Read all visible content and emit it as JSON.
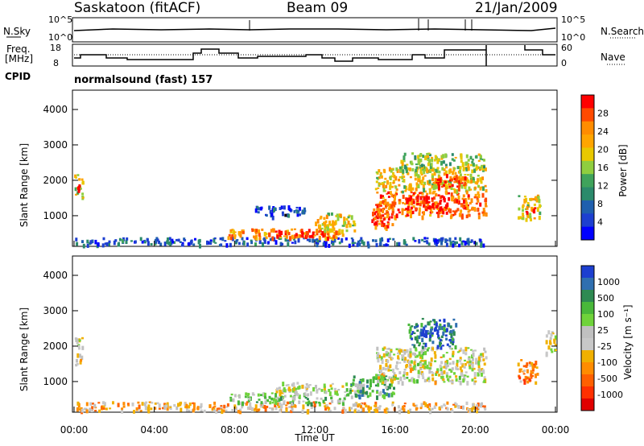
{
  "header": {
    "station": "Saskatoon (fitACF)",
    "beam": "Beam 09",
    "date": "21/Jan/2009"
  },
  "noise_panel": {
    "left_label": "N.Sky",
    "right_label": "N.Search",
    "left_ticks": [
      "10^5",
      "10^0"
    ],
    "right_ticks": [
      "10^5",
      "10^0"
    ]
  },
  "freq_panel": {
    "left_label_1": "Freq.",
    "left_label_2": "[MHz]",
    "left_ticks": [
      "18",
      "8"
    ],
    "right_label": "Nave",
    "right_ticks": [
      "60",
      "0"
    ]
  },
  "cpid_label": "CPID",
  "cpid_text": "normalsound (fast) 157",
  "chart_data": [
    {
      "type": "heatmap",
      "name": "power",
      "ylabel": "Slant Range [km]",
      "y_ticks": [
        "4000",
        "3000",
        "2000",
        "1000"
      ],
      "ylim": [
        180,
        4500
      ],
      "xlim_hours": [
        0,
        24
      ],
      "colorbar": {
        "label": "Power [dB]",
        "ticks": [
          "28",
          "24",
          "20",
          "16",
          "12",
          "8",
          "4"
        ],
        "colors": [
          "#ff0000",
          "#ff4a00",
          "#ff8c00",
          "#ffa500",
          "#e8c800",
          "#8fce3f",
          "#3fa35b",
          "#2b8a6b",
          "#1f5fae",
          "#1d3fd0",
          "#0000ff"
        ]
      },
      "regions": [
        {
          "x": [
            0.0,
            0.4
          ],
          "y": [
            1500,
            2200
          ],
          "v": 0.55
        },
        {
          "x": [
            0.1,
            0.3
          ],
          "y": [
            1700,
            1900
          ],
          "v": 0.9
        },
        {
          "x": [
            0.0,
            20.5
          ],
          "y": [
            200,
            400
          ],
          "v": 0.2
        },
        {
          "x": [
            7.5,
            13.5
          ],
          "y": [
            380,
            650
          ],
          "v": 0.75
        },
        {
          "x": [
            10.0,
            12.5
          ],
          "y": [
            450,
            600
          ],
          "v": 1.0
        },
        {
          "x": [
            9.0,
            11.5
          ],
          "y": [
            1000,
            1300
          ],
          "v": 0.15
        },
        {
          "x": [
            12.0,
            14.0
          ],
          "y": [
            600,
            1100
          ],
          "v": 0.6
        },
        {
          "x": [
            14.8,
            16.0
          ],
          "y": [
            700,
            1400
          ],
          "v": 0.85
        },
        {
          "x": [
            15.0,
            20.5
          ],
          "y": [
            1000,
            1700
          ],
          "v": 0.8
        },
        {
          "x": [
            16.5,
            18.5
          ],
          "y": [
            1200,
            1600
          ],
          "v": 1.0
        },
        {
          "x": [
            15.0,
            20.5
          ],
          "y": [
            1700,
            2400
          ],
          "v": 0.6
        },
        {
          "x": [
            18.0,
            19.5
          ],
          "y": [
            1800,
            2200
          ],
          "v": 0.9
        },
        {
          "x": [
            16.0,
            20.5
          ],
          "y": [
            2300,
            2800
          ],
          "v": 0.5
        },
        {
          "x": [
            22.1,
            23.2
          ],
          "y": [
            900,
            1600
          ],
          "v": 0.6
        },
        {
          "x": [
            22.5,
            23.0
          ],
          "y": [
            1100,
            1300
          ],
          "v": 0.95
        }
      ]
    },
    {
      "type": "heatmap",
      "name": "velocity",
      "ylabel": "Slant Range [km]",
      "xlabel": "Time UT",
      "x_ticks": [
        "00:00",
        "04:00",
        "08:00",
        "12:00",
        "16:00",
        "20:00",
        "00:00"
      ],
      "y_ticks": [
        "4000",
        "3000",
        "2000",
        "1000"
      ],
      "ylim": [
        180,
        4500
      ],
      "xlim_hours": [
        0,
        24
      ],
      "colorbar": {
        "label": "Velocity [m s⁻¹]",
        "ticks": [
          "1000",
          "500",
          "100",
          "25",
          "-25",
          "-100",
          "-500",
          "-1000"
        ],
        "colors": [
          "#1d3fd0",
          "#2f6fb0",
          "#2e8a52",
          "#49b83a",
          "#6fd33a",
          "#c0c0c0",
          "#c8c8c8",
          "#f0b000",
          "#ff8c00",
          "#ff6000",
          "#ff3000",
          "#e00000"
        ]
      },
      "regions": [
        {
          "x": [
            0.0,
            0.4
          ],
          "y": [
            1500,
            2300
          ],
          "v": 0.5
        },
        {
          "x": [
            0.0,
            20.5
          ],
          "y": [
            200,
            450
          ],
          "v": 0.35
        },
        {
          "x": [
            7.5,
            13.5
          ],
          "y": [
            400,
            700
          ],
          "v": 0.6
        },
        {
          "x": [
            10.0,
            14.5
          ],
          "y": [
            700,
            1000
          ],
          "v": 0.5
        },
        {
          "x": [
            13.5,
            16.0
          ],
          "y": [
            600,
            1200
          ],
          "v": 0.7
        },
        {
          "x": [
            15.0,
            20.5
          ],
          "y": [
            1000,
            2000
          ],
          "v": 0.5
        },
        {
          "x": [
            16.5,
            19.0
          ],
          "y": [
            2000,
            2800
          ],
          "v": 0.85
        },
        {
          "x": [
            22.1,
            23.1
          ],
          "y": [
            1000,
            1700
          ],
          "v": 0.3
        },
        {
          "x": [
            23.5,
            24.0
          ],
          "y": [
            1800,
            2500
          ],
          "v": 0.5
        }
      ]
    }
  ]
}
